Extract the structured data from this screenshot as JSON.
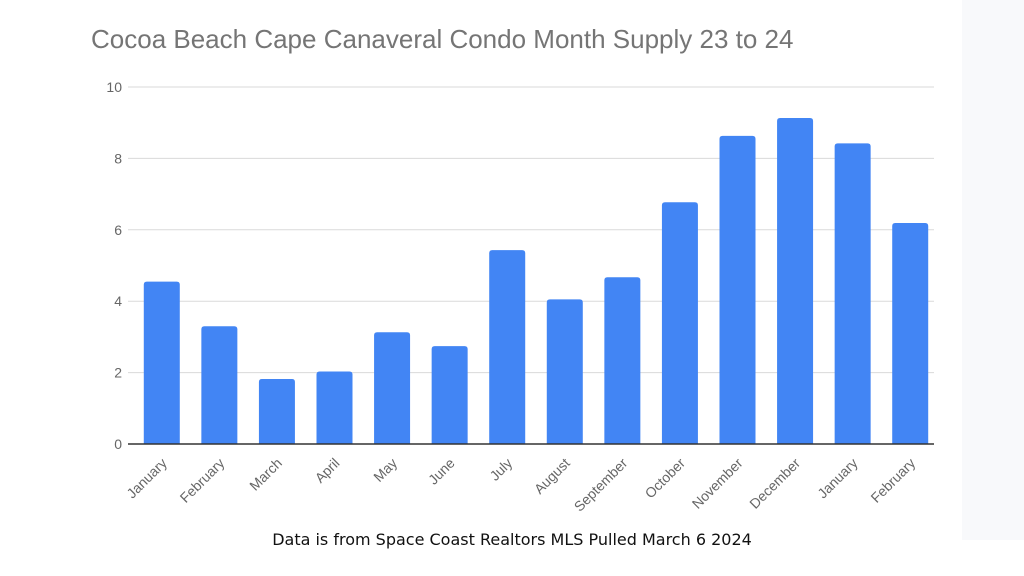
{
  "chart_data": {
    "type": "bar",
    "title": "Cocoa Beach Cape Canaveral Condo Month Supply 23 to 24",
    "categories": [
      "January",
      "February",
      "March",
      "April",
      "May",
      "June",
      "July",
      "August",
      "September",
      "October",
      "November",
      "December",
      "January",
      "February"
    ],
    "values": [
      4.55,
      3.3,
      1.82,
      2.03,
      3.13,
      2.74,
      5.43,
      4.05,
      4.67,
      6.77,
      8.63,
      9.13,
      8.42,
      6.19
    ],
    "ylim": [
      0,
      10
    ],
    "yticks": [
      0,
      2,
      4,
      6,
      8,
      10
    ],
    "grid": true,
    "bar_color": "#4285f4",
    "xlabel": "",
    "ylabel": ""
  },
  "footnote": "Data is from Space Coast Realtors MLS Pulled March 6 2024"
}
